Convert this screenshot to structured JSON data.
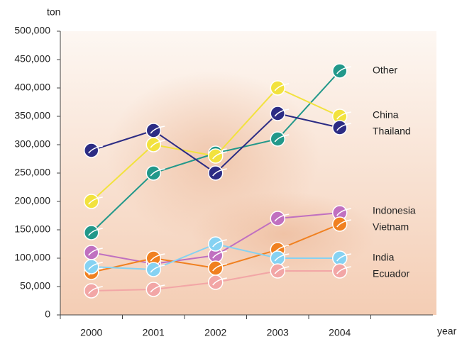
{
  "chart_data": {
    "type": "line",
    "y_label": "ton",
    "x_label": "year",
    "categories": [
      "2000",
      "2001",
      "2002",
      "2003",
      "2004"
    ],
    "ylim": [
      0,
      500000
    ],
    "yticks": [
      0,
      {
        "value": 50000,
        "label": "50,000"
      },
      {
        "value": 100000,
        "label": "100,000"
      },
      {
        "value": 150000,
        "label": "150,000"
      },
      {
        "value": 200000,
        "label": "200,000"
      },
      {
        "value": 250000,
        "label": "250,000"
      },
      {
        "value": 300000,
        "label": "300,000"
      },
      {
        "value": 350000,
        "label": "350,000"
      },
      {
        "value": 400000,
        "label": "400,000"
      },
      {
        "value": 450000,
        "label": "450,000"
      },
      {
        "value": 500000,
        "label": "500,000"
      }
    ],
    "series": [
      {
        "name": "Other",
        "color": "#22988a",
        "values": [
          145000,
          250000,
          285000,
          310000,
          430000
        ]
      },
      {
        "name": "China",
        "color": "#f2e23e",
        "values": [
          200000,
          300000,
          280000,
          400000,
          350000
        ]
      },
      {
        "name": "Thailand",
        "color": "#2c2c84",
        "values": [
          290000,
          325000,
          250000,
          355000,
          330000
        ]
      },
      {
        "name": "Indonesia",
        "color": "#c070c0",
        "values": [
          110000,
          90000,
          105000,
          170000,
          180000
        ]
      },
      {
        "name": "Vietnam",
        "color": "#f08020",
        "values": [
          75000,
          100000,
          82500,
          115000,
          160000
        ]
      },
      {
        "name": "India",
        "color": "#86d2f2",
        "values": [
          85000,
          80000,
          125000,
          100000,
          100000
        ]
      },
      {
        "name": "Ecuador",
        "color": "#f2a6a6",
        "values": [
          42500,
          45000,
          57500,
          77500,
          77500
        ]
      }
    ]
  }
}
